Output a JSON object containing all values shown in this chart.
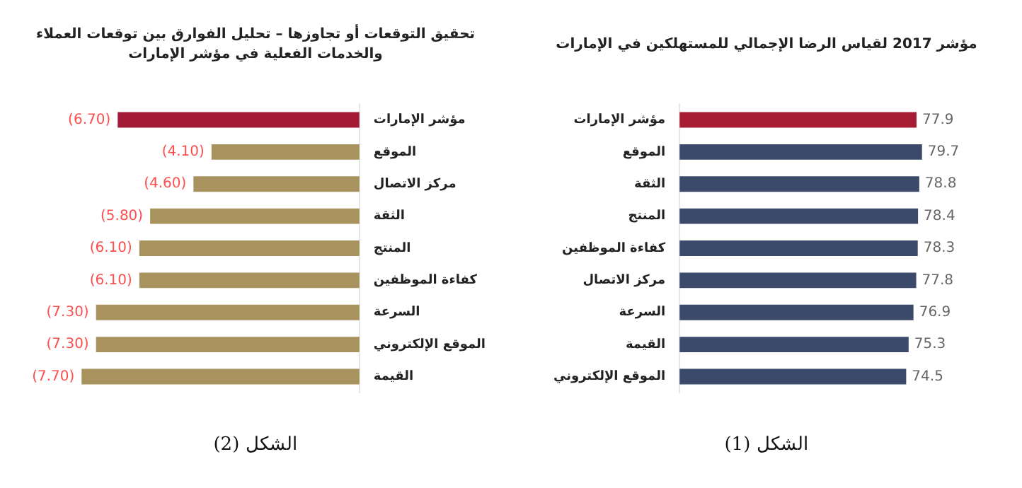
{
  "chart_data": [
    {
      "type": "bar",
      "orientation": "horizontal",
      "title": "مؤشر 2017 لقياس الرضا الإجمالي للمستهلكين في الإمارات",
      "categories": [
        "مؤشر الإمارات",
        "الموقع",
        "الثقة",
        "المنتج",
        "كفاءة الموظفين",
        "مركز الاتصال",
        "السرعة",
        "القيمة",
        "الموقع الإلكتروني"
      ],
      "values": [
        77.9,
        79.7,
        78.8,
        78.4,
        78.3,
        77.8,
        76.9,
        75.3,
        74.5
      ],
      "colors": [
        "#a51c33",
        "#3b4a6b",
        "#3b4a6b",
        "#3b4a6b",
        "#3b4a6b",
        "#3b4a6b",
        "#3b4a6b",
        "#3b4a6b",
        "#3b4a6b"
      ],
      "data_labels": true,
      "tick_labels": "y",
      "grid": false,
      "legend": false,
      "annotations": [
        "الشكل (1)"
      ]
    },
    {
      "type": "bar",
      "orientation": "horizontal",
      "title": "تحقيق التوقعات أو تجاوزها – تحليل الفوارق بين توقعات العملاء والخدمات الفعلية في مؤشر الإمارات",
      "categories": [
        "مؤشر الإمارات",
        "الموقع",
        "مركز الاتصال",
        "الثقة",
        "المنتج",
        "كفاءة الموظفين",
        "السرعة",
        "الموقع الإلكتروني",
        "القيمة"
      ],
      "values": [
        -6.7,
        -4.1,
        -4.6,
        -5.8,
        -6.1,
        -6.1,
        -7.3,
        -7.3,
        -7.7
      ],
      "value_labels": [
        "(6.70)",
        "(4.10)",
        "(4.60)",
        "(5.80)",
        "(6.10)",
        "(6.10)",
        "(7.30)",
        "(7.30)",
        "(7.70)"
      ],
      "colors": [
        "#a31a36",
        "#a8925e",
        "#a8925e",
        "#a8925e",
        "#a8925e",
        "#a8925e",
        "#a8925e",
        "#a8925e",
        "#a8925e"
      ],
      "tick_labels": "y",
      "grid": false,
      "legend": false,
      "annotations": [
        "الشكل (2)"
      ]
    }
  ]
}
